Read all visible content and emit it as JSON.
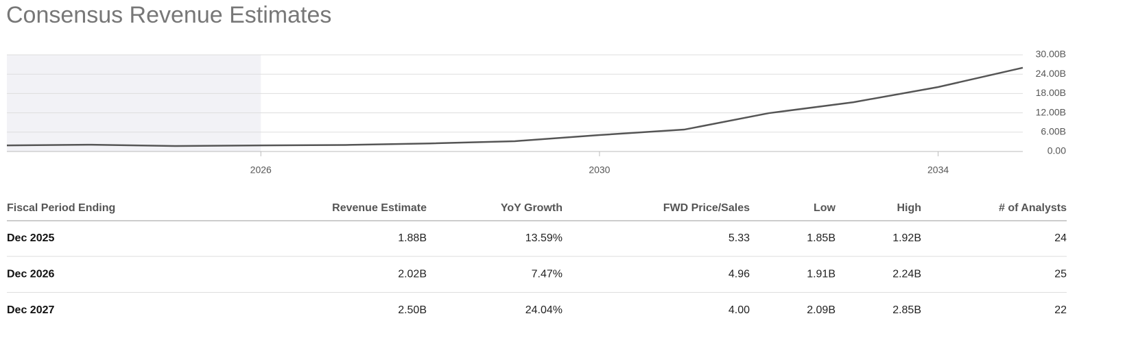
{
  "title": "Consensus Revenue Estimates",
  "chart_data": {
    "type": "line",
    "x": [
      2023,
      2024,
      2025,
      2026,
      2027,
      2028,
      2029,
      2030,
      2031,
      2032,
      2033,
      2034,
      2035
    ],
    "values": [
      1.9,
      2.1,
      1.7,
      1.88,
      2.02,
      2.5,
      3.2,
      5.1,
      6.8,
      11.9,
      15.3,
      20.0,
      26.0
    ],
    "color": "#555555",
    "xlim": [
      2023,
      2035
    ],
    "xticks": [
      2026,
      2030,
      2034
    ],
    "ylim": [
      0,
      30
    ],
    "yticks": [
      {
        "value": 0,
        "label": "0.00"
      },
      {
        "value": 6,
        "label": "6.00B"
      },
      {
        "value": 12,
        "label": "12.00B"
      },
      {
        "value": 18,
        "label": "18.00B"
      },
      {
        "value": 24,
        "label": "24.00B"
      },
      {
        "value": 30,
        "label": "30.00B"
      }
    ],
    "grid": true,
    "shaded_xrange": [
      2023,
      2026
    ]
  },
  "table": {
    "header": [
      "Fiscal Period Ending",
      "Revenue Estimate",
      "YoY Growth",
      "FWD Price/Sales",
      "Low",
      "High",
      "# of Analysts"
    ],
    "rows": [
      [
        "Dec 2025",
        "1.88B",
        "13.59%",
        "5.33",
        "1.85B",
        "1.92B",
        "24"
      ],
      [
        "Dec 2026",
        "2.02B",
        "7.47%",
        "4.96",
        "1.91B",
        "2.24B",
        "25"
      ],
      [
        "Dec 2027",
        "2.50B",
        "24.04%",
        "4.00",
        "2.09B",
        "2.85B",
        "22"
      ]
    ]
  }
}
